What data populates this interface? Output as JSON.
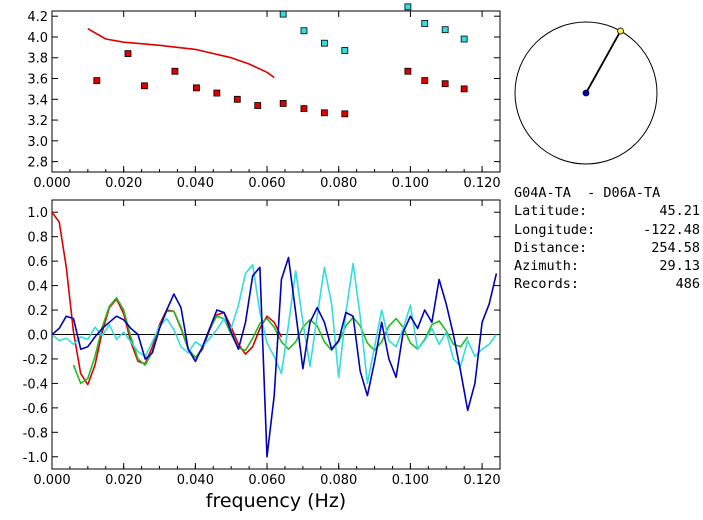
{
  "station_pair": "G04A-TA  - D06A-TA",
  "info": [
    {
      "label": "Latitude:",
      "value": "45.21"
    },
    {
      "label": "Longitude:",
      "value": "-122.48"
    },
    {
      "label": "Distance:",
      "value": "254.58"
    },
    {
      "label": "Azimuth:",
      "value": "29.13"
    },
    {
      "label": "Records:",
      "value": "486"
    }
  ],
  "colors": {
    "red": "#dd0000",
    "cyan": "#33dddd",
    "blue": "#0000bb",
    "green": "#22bb22",
    "axis": "#000000"
  },
  "azimuth_deg": 29.13,
  "chart_data": [
    {
      "type": "scatter",
      "title": "",
      "xlabel": "",
      "ylabel": "",
      "xlim": [
        0,
        0.125
      ],
      "ylim": [
        2.7,
        4.25
      ],
      "xticks": [
        "0.000",
        "0.020",
        "0.040",
        "0.060",
        "0.080",
        "0.100",
        "0.120"
      ],
      "yticks": [
        "2.8",
        "3.0",
        "3.2",
        "3.4",
        "3.6",
        "3.8",
        "4.0",
        "4.2"
      ],
      "series": [
        {
          "name": "red points",
          "style": "square",
          "color": "#dd0000",
          "x": [
            0.0125,
            0.0212,
            0.0258,
            0.0343,
            0.0403,
            0.046,
            0.0517,
            0.0574,
            0.0645,
            0.0703,
            0.076,
            0.0817,
            0.0993,
            0.104,
            0.1097,
            0.115
          ],
          "y": [
            3.58,
            3.84,
            3.53,
            3.67,
            3.51,
            3.46,
            3.4,
            3.34,
            3.36,
            3.31,
            3.27,
            3.26,
            3.67,
            3.58,
            3.55,
            3.5
          ]
        },
        {
          "name": "cyan points",
          "style": "square",
          "color": "#33dddd",
          "x": [
            0.0645,
            0.0703,
            0.076,
            0.0817,
            0.0993,
            0.104,
            0.1097,
            0.115
          ],
          "y": [
            4.22,
            4.06,
            3.94,
            3.87,
            4.29,
            4.13,
            4.07,
            3.98
          ]
        },
        {
          "name": "red curve",
          "style": "line",
          "color": "#dd0000",
          "x": [
            0.01,
            0.015,
            0.02,
            0.03,
            0.04,
            0.05,
            0.055,
            0.06,
            0.062
          ],
          "y": [
            4.08,
            3.98,
            3.95,
            3.92,
            3.88,
            3.8,
            3.74,
            3.66,
            3.61
          ]
        }
      ]
    },
    {
      "type": "line",
      "title": "",
      "xlabel": "frequency (Hz)",
      "ylabel": "",
      "xlim": [
        0,
        0.125
      ],
      "ylim": [
        -1.1,
        1.1
      ],
      "xticks": [
        "0.000",
        "0.020",
        "0.040",
        "0.060",
        "0.080",
        "0.100",
        "0.120"
      ],
      "yticks": [
        "1.0",
        "0.8",
        "0.6",
        "0.4",
        "0.2",
        "0.0",
        "-0.2",
        "-0.4",
        "-0.6",
        "-0.8",
        "-1.0"
      ],
      "zero_line": true,
      "series": [
        {
          "name": "red",
          "color": "#dd0000",
          "x": [
            0,
            0.002,
            0.004,
            0.006,
            0.008,
            0.01,
            0.012,
            0.014,
            0.016,
            0.018,
            0.02,
            0.022,
            0.024,
            0.026,
            0.028,
            0.03,
            0.032,
            0.034,
            0.036,
            0.038,
            0.04,
            0.042,
            0.044,
            0.046,
            0.048,
            0.05,
            0.052,
            0.054,
            0.056,
            0.058,
            0.06,
            0.062,
            0.064
          ],
          "y": [
            1.0,
            0.92,
            0.55,
            0.02,
            -0.32,
            -0.41,
            -0.25,
            0.02,
            0.22,
            0.29,
            0.17,
            -0.06,
            -0.22,
            -0.24,
            -0.1,
            0.08,
            0.2,
            0.19,
            0.05,
            -0.12,
            -0.19,
            -0.12,
            0.04,
            0.16,
            0.18,
            0.06,
            -0.08,
            -0.16,
            -0.1,
            0.05,
            0.15,
            0.1,
            -0.02
          ]
        },
        {
          "name": "green",
          "color": "#22bb22",
          "x": [
            0.006,
            0.008,
            0.01,
            0.012,
            0.014,
            0.016,
            0.018,
            0.02,
            0.022,
            0.024,
            0.026,
            0.028,
            0.03,
            0.032,
            0.034,
            0.036,
            0.038,
            0.04,
            0.042,
            0.044,
            0.046,
            0.048,
            0.05,
            0.052,
            0.054,
            0.056,
            0.058,
            0.06,
            0.062,
            0.064,
            0.066,
            0.068,
            0.07,
            0.072,
            0.074,
            0.076,
            0.078,
            0.08,
            0.082,
            0.084,
            0.086,
            0.088,
            0.09,
            0.092,
            0.094,
            0.096,
            0.098,
            0.1,
            0.102,
            0.104,
            0.106,
            0.108,
            0.11,
            0.112,
            0.114,
            0.116
          ],
          "y": [
            -0.25,
            -0.4,
            -0.36,
            -0.18,
            0.06,
            0.23,
            0.3,
            0.2,
            -0.02,
            -0.2,
            -0.25,
            -0.14,
            0.06,
            0.19,
            0.19,
            0.06,
            -0.12,
            -0.19,
            -0.11,
            0.05,
            0.15,
            0.13,
            0.0,
            -0.11,
            -0.13,
            -0.03,
            0.09,
            0.13,
            0.06,
            -0.06,
            -0.12,
            -0.06,
            0.06,
            0.12,
            0.07,
            -0.06,
            -0.13,
            -0.06,
            0.07,
            0.14,
            0.07,
            -0.07,
            -0.13,
            -0.06,
            0.07,
            0.13,
            0.06,
            -0.07,
            -0.12,
            -0.04,
            0.08,
            0.11,
            0.03,
            -0.08,
            -0.1,
            -0.02
          ]
        },
        {
          "name": "cyan",
          "color": "#33dddd",
          "x": [
            0,
            0.002,
            0.004,
            0.006,
            0.008,
            0.01,
            0.012,
            0.014,
            0.016,
            0.018,
            0.02,
            0.022,
            0.024,
            0.026,
            0.028,
            0.03,
            0.032,
            0.034,
            0.036,
            0.038,
            0.04,
            0.042,
            0.044,
            0.046,
            0.048,
            0.05,
            0.052,
            0.054,
            0.056,
            0.058,
            0.06,
            0.062,
            0.064,
            0.066,
            0.068,
            0.07,
            0.072,
            0.074,
            0.076,
            0.078,
            0.08,
            0.082,
            0.084,
            0.086,
            0.088,
            0.09,
            0.092,
            0.094,
            0.096,
            0.098,
            0.1,
            0.102,
            0.104,
            0.106,
            0.108,
            0.11,
            0.112,
            0.114,
            0.116,
            0.118,
            0.12,
            0.122,
            0.124
          ],
          "y": [
            0.0,
            -0.05,
            -0.03,
            -0.08,
            -0.02,
            -0.04,
            0.06,
            -0.01,
            0.08,
            -0.04,
            0.02,
            -0.06,
            -0.14,
            -0.18,
            -0.06,
            0.07,
            0.13,
            0.04,
            -0.1,
            -0.15,
            -0.06,
            -0.1,
            -0.03,
            0.04,
            0.13,
            0.05,
            0.24,
            0.5,
            0.57,
            0.18,
            -0.07,
            -0.18,
            -0.32,
            0.08,
            0.52,
            0.1,
            -0.26,
            0.15,
            0.55,
            0.25,
            -0.35,
            0.18,
            0.58,
            0.15,
            -0.4,
            -0.1,
            0.2,
            -0.05,
            -0.1,
            0.05,
            0.24,
            -0.12,
            -0.05,
            0.05,
            -0.08,
            0.02,
            -0.2,
            -0.26,
            -0.05,
            -0.18,
            -0.12,
            -0.08,
            0.0
          ]
        },
        {
          "name": "blue",
          "color": "#0000bb",
          "x": [
            0,
            0.002,
            0.004,
            0.006,
            0.008,
            0.01,
            0.012,
            0.014,
            0.016,
            0.018,
            0.02,
            0.022,
            0.024,
            0.026,
            0.028,
            0.03,
            0.032,
            0.034,
            0.036,
            0.038,
            0.04,
            0.042,
            0.044,
            0.046,
            0.048,
            0.05,
            0.052,
            0.054,
            0.056,
            0.058,
            0.06,
            0.062,
            0.064,
            0.066,
            0.068,
            0.07,
            0.072,
            0.074,
            0.076,
            0.078,
            0.08,
            0.082,
            0.084,
            0.086,
            0.088,
            0.09,
            0.092,
            0.094,
            0.096,
            0.098,
            0.1,
            0.102,
            0.104,
            0.106,
            0.108,
            0.11,
            0.112,
            0.114,
            0.116,
            0.118,
            0.12,
            0.122,
            0.124
          ],
          "y": [
            0.0,
            0.05,
            0.15,
            0.13,
            -0.12,
            -0.1,
            -0.02,
            0.05,
            0.1,
            0.15,
            0.12,
            0.05,
            0.0,
            -0.2,
            -0.15,
            0.05,
            0.2,
            0.33,
            0.22,
            -0.12,
            -0.22,
            -0.1,
            0.05,
            0.2,
            0.18,
            0.02,
            -0.12,
            0.1,
            0.48,
            0.55,
            -1.0,
            -0.5,
            0.45,
            0.63,
            0.18,
            -0.28,
            0.1,
            0.22,
            0.1,
            -0.12,
            -0.05,
            0.18,
            0.15,
            -0.3,
            -0.5,
            -0.22,
            0.1,
            -0.2,
            -0.35,
            0.02,
            0.15,
            0.05,
            0.2,
            0.1,
            0.45,
            0.25,
            0.0,
            -0.3,
            -0.62,
            -0.4,
            0.1,
            0.25,
            0.5
          ]
        }
      ]
    }
  ]
}
